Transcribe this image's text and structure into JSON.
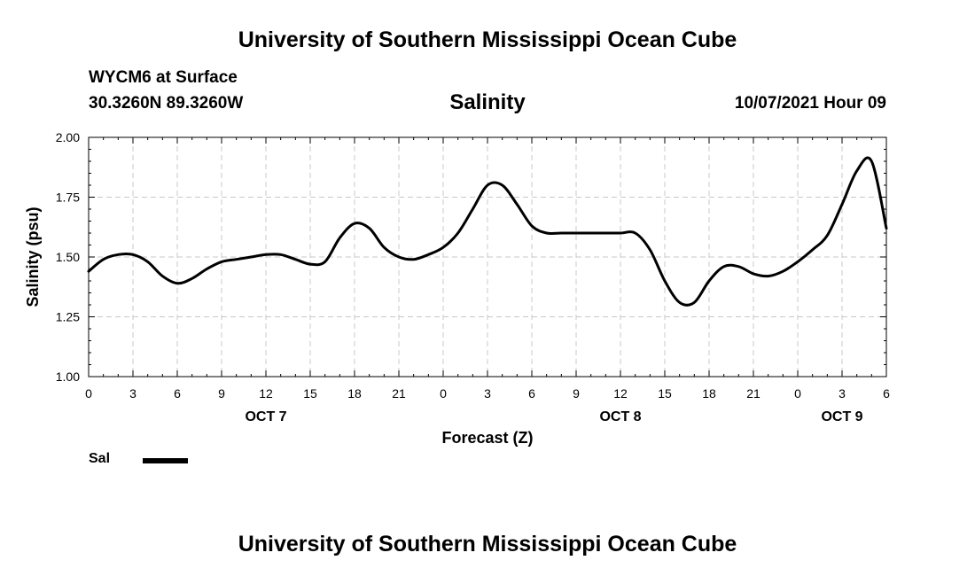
{
  "header": {
    "title": "University of Southern Mississippi Ocean Cube",
    "station": "WYCM6 at Surface",
    "coords": "30.3260N  89.3260W",
    "chart_title": "Salinity",
    "datetime": "10/07/2021 Hour 09"
  },
  "footer": {
    "title": "University of Southern Mississippi Ocean Cube"
  },
  "legend": {
    "label": "Sal",
    "color": "#000000"
  },
  "chart_data": {
    "type": "line",
    "title": "Salinity",
    "xlabel": "Forecast (Z)",
    "ylabel": "Salinity (psu)",
    "ylim": [
      1.0,
      2.0
    ],
    "yticks": [
      "1.00",
      "1.25",
      "1.50",
      "1.75",
      "2.00"
    ],
    "xticks": [
      "0",
      "3",
      "6",
      "9",
      "12",
      "15",
      "18",
      "21",
      "0",
      "3",
      "6",
      "9",
      "12",
      "15",
      "18",
      "21",
      "0",
      "3",
      "6"
    ],
    "date_labels": [
      {
        "label": "OCT 7",
        "at_hour": 12
      },
      {
        "label": "OCT 8",
        "at_hour": 36
      },
      {
        "label": "OCT 9",
        "at_hour": 51
      }
    ],
    "xlim_hours": [
      0,
      54
    ],
    "grid": true,
    "series": [
      {
        "name": "Sal",
        "color": "#000000",
        "x_hours": [
          0,
          1,
          2,
          3,
          4,
          5,
          6,
          7,
          8,
          9,
          10,
          11,
          12,
          13,
          14,
          15,
          16,
          17,
          18,
          19,
          20,
          21,
          22,
          23,
          24,
          25,
          26,
          27,
          28,
          29,
          30,
          31,
          32,
          33,
          34,
          35,
          36,
          37,
          38,
          39,
          40,
          41,
          42,
          43,
          44,
          45,
          46,
          47,
          48,
          49,
          50,
          51,
          52,
          53,
          54
        ],
        "values": [
          1.44,
          1.49,
          1.51,
          1.51,
          1.48,
          1.42,
          1.39,
          1.41,
          1.45,
          1.48,
          1.49,
          1.5,
          1.51,
          1.51,
          1.49,
          1.47,
          1.48,
          1.58,
          1.64,
          1.62,
          1.54,
          1.5,
          1.49,
          1.51,
          1.54,
          1.6,
          1.7,
          1.8,
          1.8,
          1.72,
          1.63,
          1.6,
          1.6,
          1.6,
          1.6,
          1.6,
          1.6,
          1.6,
          1.53,
          1.4,
          1.31,
          1.31,
          1.4,
          1.46,
          1.46,
          1.43,
          1.42,
          1.44,
          1.48,
          1.53,
          1.59,
          1.72,
          1.86,
          1.9,
          1.62
        ]
      }
    ]
  }
}
